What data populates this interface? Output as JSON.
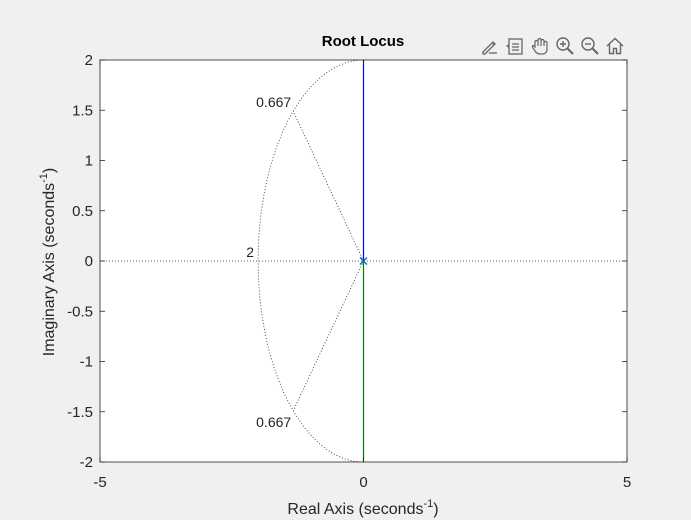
{
  "toolbar": {
    "icons": [
      "brush-edit-icon",
      "data-tips-icon",
      "pan-hand-icon",
      "zoom-in-icon",
      "zoom-out-icon",
      "home-icon"
    ]
  },
  "chart_data": {
    "type": "line",
    "title": "Root Locus",
    "xlabel": "Real Axis (seconds",
    "ylabel": "Imaginary Axis (seconds",
    "axis_label_exponent": "-1",
    "xlim": [
      -5,
      5
    ],
    "ylim": [
      -2,
      2
    ],
    "xticks": [
      -5,
      0,
      5
    ],
    "xtick_labels": [
      "-5",
      "0",
      "5"
    ],
    "yticks": [
      2,
      1.5,
      1,
      0.5,
      0,
      -0.5,
      -1,
      -1.5,
      -2
    ],
    "ytick_labels": [
      "2",
      "1.5",
      "1",
      "0.5",
      "0",
      "-0.5",
      "-1",
      "-1.5",
      "-2"
    ],
    "grid": false,
    "series": [
      {
        "color": "#0000ff",
        "x": [
          0,
          0
        ],
        "y": [
          0,
          2
        ]
      },
      {
        "color": "#008000",
        "x": [
          0,
          0
        ],
        "y": [
          0,
          -2
        ]
      }
    ],
    "pole": {
      "x": 0,
      "y": 0,
      "marker": "x",
      "color": "#0072bd"
    },
    "damping_grid": {
      "lines": [
        0.667
      ],
      "labels": [
        "0.667",
        "0.667"
      ]
    },
    "natural_frequency_grid": {
      "circles": [
        2
      ],
      "labels": [
        "2"
      ]
    },
    "colors": {
      "axes_bg": "#ffffff",
      "figure_bg": "#f0f0f0",
      "text": "#262626",
      "grid": "#262626"
    }
  }
}
